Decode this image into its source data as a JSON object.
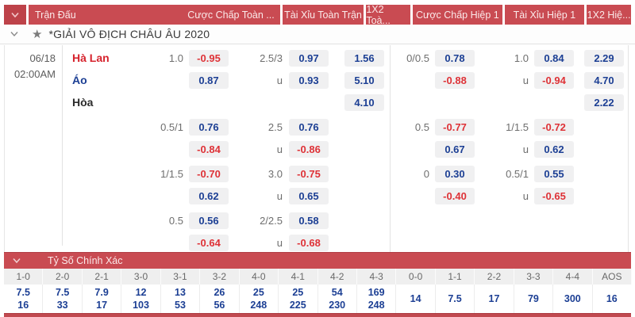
{
  "toolbar": {
    "match": "Trận Đấu",
    "full_handicap": "Cược Chấp Toàn ...",
    "full_ou": "Tài Xỉu Toàn Trận",
    "full_1x2": "1X2 Toà...",
    "h1_handicap": "Cược Chấp Hiệp 1",
    "h1_ou": "Tài Xỉu Hiệp 1",
    "h1_1x2": "1X2 Hiệ..."
  },
  "league": {
    "name": "*GIẢI VÔ ĐỊCH CHÂU ÂU 2020"
  },
  "match": {
    "date": "06/18",
    "time": "02:00AM",
    "teams": [
      {
        "name": "Hà Lan"
      },
      {
        "name": "Áo"
      },
      {
        "name": "Hòa"
      }
    ]
  },
  "odds": {
    "groups": [
      {
        "rows": [
          {
            "l1": "1.0",
            "hc": "-0.95",
            "l2": "2.5/3",
            "ou": "0.97",
            "x12": "1.56",
            "l3": "0/0.5",
            "hc2": "0.78",
            "l4": "1.0",
            "ou2": "0.84",
            "x122": "2.29"
          },
          {
            "l1": "",
            "hc": "0.87",
            "l2": "u",
            "ou": "0.93",
            "x12": "5.10",
            "l3": "",
            "hc2": "-0.88",
            "l4": "u",
            "ou2": "-0.94",
            "x122": "4.70"
          },
          {
            "l1": "",
            "hc": "",
            "l2": "",
            "ou": "",
            "x12": "4.10",
            "l3": "",
            "hc2": "",
            "l4": "",
            "ou2": "",
            "x122": "2.22"
          }
        ]
      },
      {
        "rows": [
          {
            "l1": "0.5/1",
            "hc": "0.76",
            "l2": "2.5",
            "ou": "0.76",
            "x12": "",
            "l3": "0.5",
            "hc2": "-0.77",
            "l4": "1/1.5",
            "ou2": "-0.72",
            "x122": ""
          },
          {
            "l1": "",
            "hc": "-0.84",
            "l2": "u",
            "ou": "-0.86",
            "x12": "",
            "l3": "",
            "hc2": "0.67",
            "l4": "u",
            "ou2": "0.62",
            "x122": ""
          }
        ]
      },
      {
        "rows": [
          {
            "l1": "1/1.5",
            "hc": "-0.70",
            "l2": "3.0",
            "ou": "-0.75",
            "x12": "",
            "l3": "0",
            "hc2": "0.30",
            "l4": "0.5/1",
            "ou2": "0.55",
            "x122": ""
          },
          {
            "l1": "",
            "hc": "0.62",
            "l2": "u",
            "ou": "0.65",
            "x12": "",
            "l3": "",
            "hc2": "-0.40",
            "l4": "u",
            "ou2": "-0.65",
            "x122": ""
          }
        ]
      },
      {
        "rows": [
          {
            "l1": "0.5",
            "hc": "0.56",
            "l2": "2/2.5",
            "ou": "0.58",
            "x12": "",
            "l3": "",
            "hc2": "",
            "l4": "",
            "ou2": "",
            "x122": ""
          },
          {
            "l1": "",
            "hc": "-0.64",
            "l2": "u",
            "ou": "-0.68",
            "x12": "",
            "l3": "",
            "hc2": "",
            "l4": "",
            "ou2": "",
            "x122": ""
          }
        ]
      }
    ]
  },
  "correct_score": {
    "title": "Tỷ Số Chính Xác",
    "columns": [
      {
        "score": "1-0",
        "values": [
          "7.5",
          "16"
        ]
      },
      {
        "score": "2-0",
        "values": [
          "7.5",
          "33"
        ]
      },
      {
        "score": "2-1",
        "values": [
          "7.9",
          "17"
        ]
      },
      {
        "score": "3-0",
        "values": [
          "12",
          "103"
        ]
      },
      {
        "score": "3-1",
        "values": [
          "13",
          "53"
        ]
      },
      {
        "score": "3-2",
        "values": [
          "26",
          "56"
        ]
      },
      {
        "score": "4-0",
        "values": [
          "25",
          "248"
        ]
      },
      {
        "score": "4-1",
        "values": [
          "25",
          "225"
        ]
      },
      {
        "score": "4-2",
        "values": [
          "54",
          "230"
        ]
      },
      {
        "score": "4-3",
        "values": [
          "169",
          "248"
        ]
      },
      {
        "score": "0-0",
        "values": [
          "14"
        ]
      },
      {
        "score": "1-1",
        "values": [
          "7.5"
        ]
      },
      {
        "score": "2-2",
        "values": [
          "17"
        ]
      },
      {
        "score": "3-3",
        "values": [
          "79"
        ]
      },
      {
        "score": "4-4",
        "values": [
          "300"
        ]
      },
      {
        "score": "AOS",
        "values": [
          "16"
        ]
      }
    ]
  },
  "icons": {
    "star": "★"
  },
  "colors": {
    "header_red": "#C94B52",
    "odds_blue": "#1C3F94",
    "odds_negative_red": "#DE3237",
    "home_team_red": "#D6222C",
    "away_team_blue": "#1C3F94",
    "box_gray": "#F0F0F1"
  }
}
